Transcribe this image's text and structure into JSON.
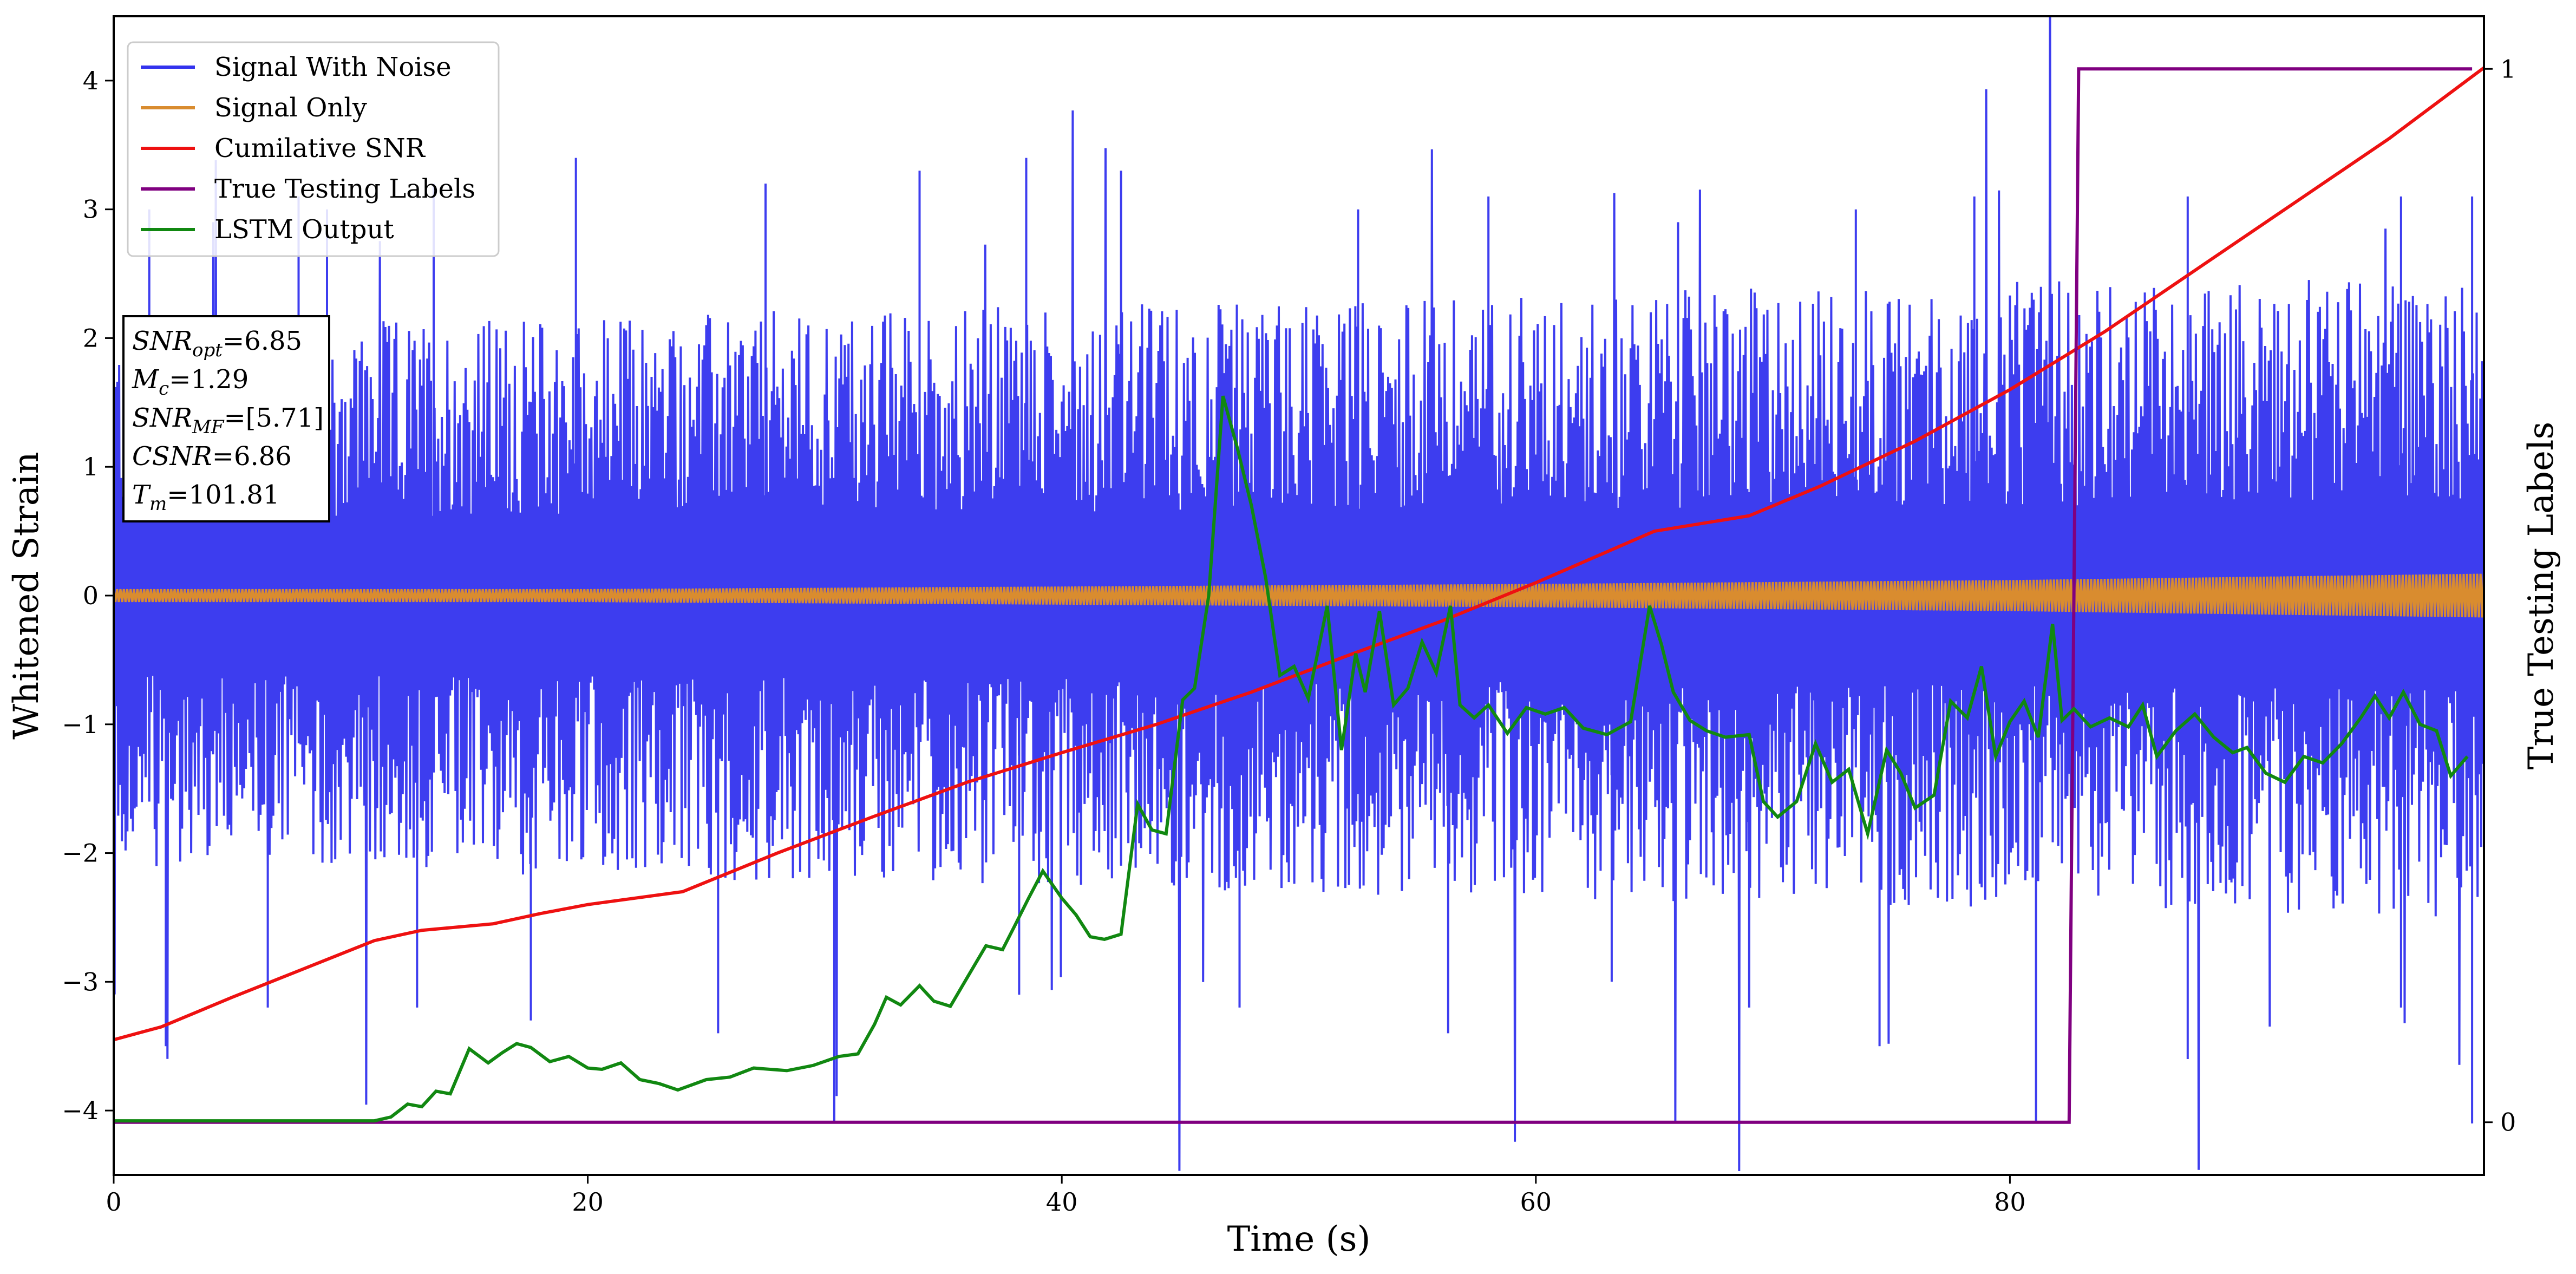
{
  "chart_data": {
    "type": "line",
    "xlabel": "Time (s)",
    "ylabel": "Whitened Strain",
    "y2label": "True Testing Labels",
    "xlim": [
      0,
      100
    ],
    "ylim": [
      -4.5,
      4.5
    ],
    "y2lim": [
      -0.05,
      1.05
    ],
    "x_ticks": [
      0,
      20,
      40,
      60,
      80
    ],
    "y_ticks": [
      -4,
      -3,
      -2,
      -1,
      0,
      1,
      2,
      3,
      4
    ],
    "y2_ticks": [
      0,
      1
    ],
    "grid": false,
    "legend_position": "top-left",
    "series": [
      {
        "name": "Signal With Noise",
        "color": "#3333ee",
        "axis": "left",
        "style": "dense-noise",
        "envelope": {
          "x": [
            0,
            100
          ],
          "upper": [
            1.0,
            1.2
          ],
          "lower": [
            -1.0,
            -1.2
          ]
        },
        "peaks": [
          {
            "x": 1.5,
            "y": 3.0
          },
          {
            "x": 4.2,
            "y": 2.9
          },
          {
            "x": 7.8,
            "y": 3.1
          },
          {
            "x": 9.0,
            "y": 3.0
          },
          {
            "x": 13.5,
            "y": 3.2
          },
          {
            "x": 19.5,
            "y": 3.4
          },
          {
            "x": 27.5,
            "y": 3.2
          },
          {
            "x": 34.0,
            "y": 3.3
          },
          {
            "x": 38.5,
            "y": 3.4
          },
          {
            "x": 42.5,
            "y": 3.3
          },
          {
            "x": 52.5,
            "y": 3.0
          },
          {
            "x": 58.0,
            "y": 3.1
          },
          {
            "x": 66.0,
            "y": 2.9
          },
          {
            "x": 73.5,
            "y": 3.0
          },
          {
            "x": 78.5,
            "y": 3.1
          },
          {
            "x": 87.5,
            "y": 3.1
          },
          {
            "x": 96.5,
            "y": 3.1
          },
          {
            "x": 99.5,
            "y": 3.1
          }
        ],
        "troughs": [
          {
            "x": 2.2,
            "y": -3.5
          },
          {
            "x": 6.5,
            "y": -3.2
          },
          {
            "x": 12.8,
            "y": -3.2
          },
          {
            "x": 17.6,
            "y": -3.3
          },
          {
            "x": 25.5,
            "y": -3.4
          },
          {
            "x": 30.4,
            "y": -4.1
          },
          {
            "x": 38.2,
            "y": -3.1
          },
          {
            "x": 47.5,
            "y": -3.2
          },
          {
            "x": 56.3,
            "y": -3.4
          },
          {
            "x": 63.2,
            "y": -3.0
          },
          {
            "x": 69.0,
            "y": -3.2
          },
          {
            "x": 74.5,
            "y": -3.5
          },
          {
            "x": 81.1,
            "y": -4.1
          },
          {
            "x": 87.5,
            "y": -3.6
          },
          {
            "x": 96.5,
            "y": -3.2
          },
          {
            "x": 99.5,
            "y": -4.1
          }
        ]
      },
      {
        "name": "Signal Only",
        "color": "#d98c2f",
        "axis": "left",
        "style": "oscillation-band",
        "amplitude": {
          "x": [
            0,
            20,
            40,
            60,
            80,
            100
          ],
          "y": [
            0.05,
            0.05,
            0.07,
            0.09,
            0.12,
            0.17
          ]
        }
      },
      {
        "name": "Cumilative SNR",
        "color": "#ee1111",
        "axis": "left",
        "x": [
          0,
          2,
          5,
          8,
          11,
          13,
          16,
          18,
          20,
          24,
          28,
          32,
          36,
          40,
          44,
          48,
          52,
          56,
          60,
          65,
          69,
          72,
          76,
          80,
          84,
          88,
          92,
          96,
          100
        ],
        "y": [
          -3.45,
          -3.35,
          -3.12,
          -2.9,
          -2.68,
          -2.6,
          -2.55,
          -2.47,
          -2.4,
          -2.3,
          -2.0,
          -1.72,
          -1.45,
          -1.22,
          -1.0,
          -0.75,
          -0.47,
          -0.2,
          0.1,
          0.5,
          0.62,
          0.85,
          1.2,
          1.6,
          2.05,
          2.55,
          3.05,
          3.55,
          4.1
        ]
      },
      {
        "name": "True Testing Labels",
        "color": "#800080",
        "axis": "right",
        "x": [
          0,
          82.5,
          82.9,
          99.5
        ],
        "y": [
          0,
          0,
          1,
          1
        ]
      },
      {
        "name": "LSTM Output",
        "color": "#118811",
        "axis": "left",
        "x": [
          0,
          11,
          11.7,
          12.4,
          13,
          13.6,
          14.2,
          15,
          15.8,
          16.4,
          17,
          17.6,
          18.4,
          19.2,
          20,
          20.6,
          21.4,
          22.2,
          23,
          23.8,
          25,
          26,
          27,
          28.4,
          29.5,
          30.6,
          31.4,
          32.1,
          32.6,
          33.2,
          34,
          34.6,
          35.3,
          36,
          36.8,
          37.5,
          38,
          38.6,
          39.2,
          40,
          40.6,
          41.2,
          41.8,
          42.5,
          43.2,
          43.8,
          44.4,
          45.1,
          45.6,
          46.2,
          46.8,
          47.4,
          48,
          48.6,
          49.2,
          49.8,
          50.4,
          51.2,
          51.8,
          52.4,
          52.8,
          53.4,
          54,
          54.6,
          55.2,
          55.8,
          56.4,
          56.8,
          57.4,
          58,
          58.8,
          59.6,
          60.4,
          61.2,
          62,
          63,
          64,
          64.8,
          65.3,
          65.8,
          66.5,
          67.2,
          68,
          69,
          69.6,
          70.2,
          71,
          71.8,
          72.5,
          73.2,
          74,
          74.8,
          75.4,
          76,
          76.8,
          77.5,
          78.2,
          78.8,
          79.4,
          80,
          80.6,
          81.2,
          81.8,
          82.2,
          82.7,
          83.4,
          84.2,
          85,
          85.6,
          86.2,
          87,
          87.8,
          88.6,
          89.4,
          90,
          90.8,
          91.6,
          92.4,
          93.2,
          94,
          94.8,
          95.4,
          96,
          96.6,
          97.3,
          98,
          98.6,
          99.3
        ],
        "y": [
          -4.08,
          -4.08,
          -4.05,
          -3.95,
          -3.97,
          -3.85,
          -3.87,
          -3.52,
          -3.63,
          -3.55,
          -3.48,
          -3.51,
          -3.62,
          -3.58,
          -3.67,
          -3.68,
          -3.63,
          -3.76,
          -3.79,
          -3.84,
          -3.76,
          -3.74,
          -3.67,
          -3.69,
          -3.65,
          -3.58,
          -3.56,
          -3.33,
          -3.12,
          -3.18,
          -3.03,
          -3.15,
          -3.19,
          -2.97,
          -2.72,
          -2.75,
          -2.57,
          -2.35,
          -2.14,
          -2.35,
          -2.48,
          -2.65,
          -2.67,
          -2.63,
          -1.62,
          -1.82,
          -1.85,
          -0.81,
          -0.72,
          0.0,
          1.55,
          1.15,
          0.7,
          0.14,
          -0.62,
          -0.55,
          -0.8,
          -0.08,
          -1.2,
          -0.45,
          -0.75,
          -0.12,
          -0.85,
          -0.72,
          -0.36,
          -0.6,
          -0.08,
          -0.85,
          -0.95,
          -0.85,
          -1.07,
          -0.87,
          -0.92,
          -0.87,
          -1.03,
          -1.08,
          -0.98,
          -0.08,
          -0.38,
          -0.75,
          -0.97,
          -1.05,
          -1.1,
          -1.08,
          -1.6,
          -1.72,
          -1.6,
          -1.15,
          -1.45,
          -1.35,
          -1.85,
          -1.2,
          -1.38,
          -1.65,
          -1.55,
          -0.82,
          -0.95,
          -0.55,
          -1.25,
          -0.98,
          -0.82,
          -1.1,
          -0.22,
          -0.97,
          -0.88,
          -1.02,
          -0.95,
          -1.02,
          -0.85,
          -1.25,
          -1.05,
          -0.92,
          -1.1,
          -1.22,
          -1.18,
          -1.38,
          -1.45,
          -1.25,
          -1.3,
          -1.15,
          -0.95,
          -0.78,
          -0.95,
          -0.75,
          -1.0,
          -1.05,
          -1.4,
          -1.25
        ]
      }
    ],
    "annotation": {
      "lines": [
        {
          "base": "SNR",
          "sub": "opt",
          "value": "=6.85"
        },
        {
          "base": "M",
          "sub": "c",
          "value": "=1.29"
        },
        {
          "base": "SNR",
          "sub": "MF",
          "value": "=[5.71]"
        },
        {
          "base": "CSNR",
          "sub": "",
          "value": "=6.86"
        },
        {
          "base": "T",
          "sub": "m",
          "value": "=101.81"
        }
      ]
    }
  }
}
